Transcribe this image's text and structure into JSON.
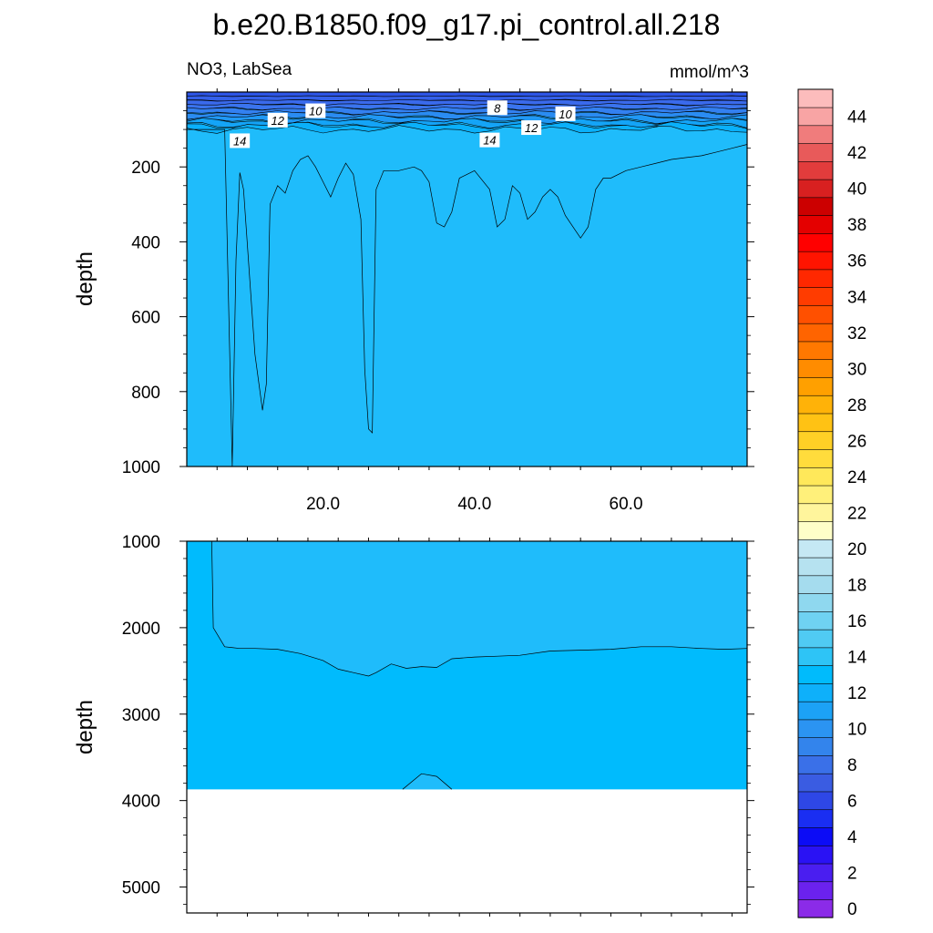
{
  "title": "b.e20.B1850.f09_g17.pi_control.all.218",
  "left_subtitle": "NO3, LabSea",
  "right_subtitle": "mmol/m^3",
  "colorbar": {
    "labels": [
      "0",
      "2",
      "4",
      "6",
      "8",
      "10",
      "12",
      "14",
      "16",
      "18",
      "20",
      "22",
      "24",
      "26",
      "28",
      "30",
      "32",
      "34",
      "36",
      "38",
      "40",
      "42",
      "44"
    ],
    "colors": [
      "#8b2be8",
      "#6b22ee",
      "#4a1ef0",
      "#2a12f4",
      "#0c0cf6",
      "#1a2ef2",
      "#2e47e6",
      "#3a5ce2",
      "#3a70e8",
      "#3384ec",
      "#2b94f2",
      "#1ca2f6",
      "#0eb0fa",
      "#00bbfc",
      "#2ec4f6",
      "#50cbf3",
      "#6fd2f2",
      "#8fd8ef",
      "#a5dcee",
      "#b6e2f0",
      "#c5e8f4",
      "#fefec8",
      "#fff59c",
      "#fff07a",
      "#ffe85a",
      "#ffdc3c",
      "#ffd026",
      "#ffc214",
      "#ffb208",
      "#ffa000",
      "#ff8c00",
      "#ff7800",
      "#ff6400",
      "#ff5000",
      "#ff3c00",
      "#ff2800",
      "#ff1400",
      "#ff0000",
      "#e40000",
      "#cc0000",
      "#d82020",
      "#e23c3c",
      "#e85a5a",
      "#f07c7c",
      "#f8a4a4",
      "#fcbcbc"
    ]
  },
  "chart_data": [
    {
      "type": "contour",
      "panel": "upper",
      "xlabel": "",
      "ylabel": "depth",
      "xlim": [
        2,
        76
      ],
      "ylim": [
        1000,
        0
      ],
      "x_ticks": [
        "20.0",
        "40.0",
        "60.0"
      ],
      "x_tick_values": [
        20,
        40,
        60
      ],
      "y_ticks": [
        "200",
        "400",
        "600",
        "800",
        "1000"
      ],
      "y_tick_values": [
        200,
        400,
        600,
        800,
        1000
      ],
      "contour_labels": [
        {
          "text": "10",
          "x": 19,
          "y": 50
        },
        {
          "text": "12",
          "x": 14,
          "y": 75
        },
        {
          "text": "14",
          "x": 9,
          "y": 130
        },
        {
          "text": "8",
          "x": 43,
          "y": 42
        },
        {
          "text": "10",
          "x": 52,
          "y": 58
        },
        {
          "text": "12",
          "x": 47.5,
          "y": 95
        },
        {
          "text": "14",
          "x": 42,
          "y": 128
        }
      ],
      "level_16_contour": {
        "x": [
          2,
          7,
          8,
          8.5,
          9,
          9.5,
          11,
          12,
          12.5,
          13,
          14,
          15,
          16,
          17,
          18,
          19,
          20,
          21,
          22,
          23,
          24,
          25,
          25.5,
          26,
          26.5,
          27,
          28,
          30,
          32,
          33,
          34,
          35,
          36,
          37,
          38,
          39,
          40,
          42,
          43,
          44,
          45,
          46,
          47,
          48,
          49,
          50,
          51,
          52,
          54,
          55,
          56,
          57,
          58,
          60,
          62,
          64,
          66,
          68,
          70,
          72,
          74,
          76
        ],
        "y": [
          100,
          100,
          1000,
          450,
          215,
          260,
          700,
          850,
          780,
          300,
          250,
          270,
          210,
          180,
          170,
          200,
          240,
          280,
          230,
          190,
          220,
          340,
          740,
          900,
          910,
          260,
          210,
          210,
          200,
          210,
          240,
          350,
          360,
          320,
          230,
          220,
          210,
          260,
          360,
          340,
          250,
          270,
          340,
          320,
          280,
          260,
          280,
          330,
          390,
          360,
          260,
          230,
          230,
          210,
          200,
          190,
          180,
          175,
          170,
          160,
          150,
          140
        ]
      }
    },
    {
      "type": "contour",
      "panel": "lower",
      "xlabel": "",
      "ylabel": "depth",
      "xlim": [
        2,
        76
      ],
      "ylim": [
        5300,
        1000
      ],
      "y_ticks": [
        "1000",
        "2000",
        "3000",
        "4000",
        "5000"
      ],
      "y_tick_values": [
        1000,
        2000,
        3000,
        4000,
        5000
      ],
      "ocean_bottom_depth": 3870,
      "level_16_contour": {
        "x": [
          5.3,
          5.5,
          7,
          9,
          11,
          14,
          17,
          20,
          22,
          24,
          26,
          27,
          29,
          31,
          33,
          35,
          37,
          40,
          43,
          46,
          50,
          54,
          58,
          62,
          66,
          70,
          73,
          76
        ],
        "y": [
          1000,
          2000,
          2220,
          2240,
          2240,
          2250,
          2300,
          2380,
          2480,
          2520,
          2560,
          2520,
          2420,
          2470,
          2450,
          2460,
          2360,
          2340,
          2330,
          2320,
          2270,
          2260,
          2250,
          2220,
          2220,
          2240,
          2250,
          2240
        ]
      },
      "notes_bump": {
        "x": [
          30.5,
          33,
          35,
          37
        ],
        "y": [
          3870,
          3690,
          3720,
          3870
        ]
      }
    }
  ]
}
